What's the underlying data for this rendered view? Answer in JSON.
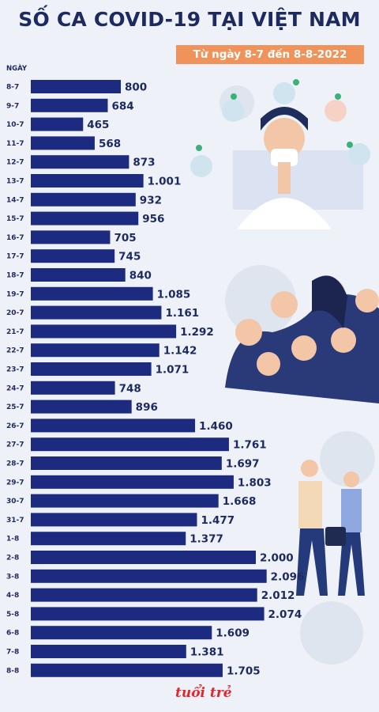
{
  "title": "SỐ CA COVID-19 TẠI VIỆT NAM",
  "subtitle": "Từ ngày 8-7 đến 8-8-2022",
  "axis_header": "NGÀY",
  "logo": "tuổi trẻ",
  "colors": {
    "bar": "#1c2a80",
    "title": "#1c2a5f",
    "subtitle_bg": "#f0935a"
  },
  "chart_data": {
    "type": "bar",
    "orientation": "horizontal",
    "title": "SỐ CA COVID-19 TẠI VIỆT NAM",
    "subtitle": "Từ ngày 8-7 đến 8-8-2022",
    "ylabel": "NGÀY",
    "categories": [
      "8-7",
      "9-7",
      "10-7",
      "11-7",
      "12-7",
      "13-7",
      "14-7",
      "15-7",
      "16-7",
      "17-7",
      "18-7",
      "19-7",
      "20-7",
      "21-7",
      "22-7",
      "23-7",
      "24-7",
      "25-7",
      "26-7",
      "27-7",
      "28-7",
      "29-7",
      "30-7",
      "31-7",
      "1-8",
      "2-8",
      "3-8",
      "4-8",
      "5-8",
      "6-8",
      "7-8",
      "8-8"
    ],
    "values": [
      800,
      684,
      465,
      568,
      873,
      1001,
      932,
      956,
      705,
      745,
      840,
      1085,
      1161,
      1292,
      1142,
      1071,
      748,
      896,
      1460,
      1761,
      1697,
      1803,
      1668,
      1477,
      1377,
      2000,
      2096,
      2012,
      2074,
      1609,
      1381,
      1705
    ],
    "value_labels": [
      "800",
      "684",
      "465",
      "568",
      "873",
      "1.001",
      "932",
      "956",
      "705",
      "745",
      "840",
      "1.085",
      "1.161",
      "1.292",
      "1.142",
      "1.071",
      "748",
      "896",
      "1.460",
      "1.761",
      "1.697",
      "1.803",
      "1.668",
      "1.477",
      "1.377",
      "2.000",
      "2.096",
      "2.012",
      "2.074",
      "1.609",
      "1.381",
      "1.705"
    ],
    "xlim": [
      0,
      2096
    ],
    "grid": false,
    "legend": "none"
  }
}
